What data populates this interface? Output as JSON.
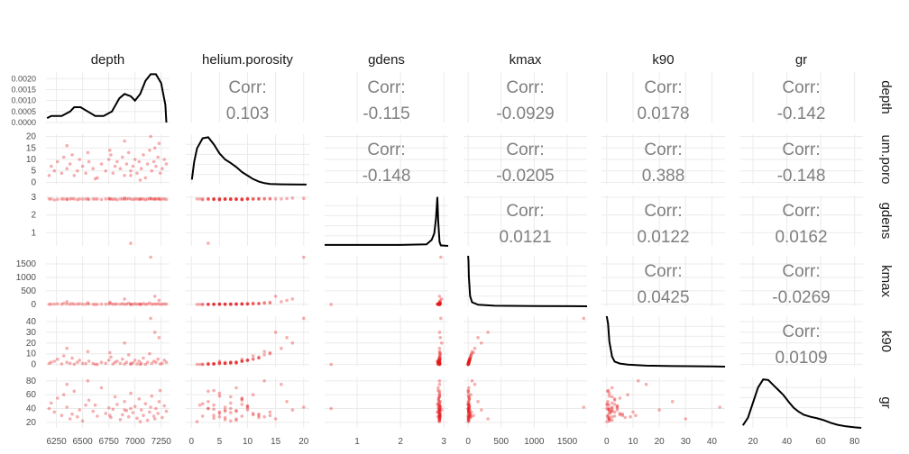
{
  "chart_data": {
    "type": "scatter",
    "title": "",
    "variables": [
      "depth",
      "helium.porosity",
      "gdens",
      "kmax",
      "k90",
      "gr"
    ],
    "row_strip_labels": [
      "depth",
      "um.poro",
      "gdens",
      "kmax",
      "k90",
      "gr"
    ],
    "corr_label": "Corr:",
    "correlations": [
      {
        "row": 0,
        "col": 1,
        "value": "0.103"
      },
      {
        "row": 0,
        "col": 2,
        "value": "-0.115"
      },
      {
        "row": 0,
        "col": 3,
        "value": "-0.0929"
      },
      {
        "row": 0,
        "col": 4,
        "value": "0.0178"
      },
      {
        "row": 0,
        "col": 5,
        "value": "-0.142"
      },
      {
        "row": 1,
        "col": 2,
        "value": "-0.148"
      },
      {
        "row": 1,
        "col": 3,
        "value": "-0.0205"
      },
      {
        "row": 1,
        "col": 4,
        "value": "0.388"
      },
      {
        "row": 1,
        "col": 5,
        "value": "-0.148"
      },
      {
        "row": 2,
        "col": 3,
        "value": "0.0121"
      },
      {
        "row": 2,
        "col": 4,
        "value": "0.0122"
      },
      {
        "row": 2,
        "col": 5,
        "value": "0.0162"
      },
      {
        "row": 3,
        "col": 4,
        "value": "0.0425"
      },
      {
        "row": 3,
        "col": 5,
        "value": "-0.0269"
      },
      {
        "row": 4,
        "col": 5,
        "value": "0.0109"
      }
    ],
    "x_axis_ticks": [
      {
        "col": 0,
        "ticks": [
          "6250",
          "6500",
          "6750",
          "7000",
          "7250"
        ]
      },
      {
        "col": 1,
        "ticks": [
          "0",
          "5",
          "10",
          "15",
          "20"
        ]
      },
      {
        "col": 2,
        "ticks": [
          "1",
          "2",
          "3"
        ]
      },
      {
        "col": 3,
        "ticks": [
          "0",
          "500",
          "1000",
          "1500"
        ]
      },
      {
        "col": 4,
        "ticks": [
          "0",
          "10",
          "20",
          "30",
          "40"
        ]
      },
      {
        "col": 5,
        "ticks": [
          "20",
          "40",
          "60",
          "80"
        ]
      }
    ],
    "y_axis_ticks": [
      {
        "row": 0,
        "ticks": [
          "0.0000",
          "0.0005",
          "0.0010",
          "0.0015",
          "0.0020"
        ]
      },
      {
        "row": 1,
        "ticks": [
          "0",
          "5",
          "10",
          "15",
          "20"
        ]
      },
      {
        "row": 2,
        "ticks": [
          "1",
          "2",
          "3"
        ]
      },
      {
        "row": 3,
        "ticks": [
          "0",
          "500",
          "1000",
          "1500"
        ]
      },
      {
        "row": 4,
        "ticks": [
          "0",
          "10",
          "20",
          "30",
          "40"
        ]
      },
      {
        "row": 5,
        "ticks": [
          "20",
          "40",
          "60",
          "80"
        ]
      }
    ],
    "ranges": {
      "depth": [
        6150,
        7330
      ],
      "helium.porosity": [
        -1,
        21
      ],
      "gdens": [
        0.25,
        3.1
      ],
      "kmax": [
        -70,
        1800
      ],
      "k90": [
        -2,
        45
      ],
      "gr": [
        12,
        85
      ]
    },
    "depth_density_ylim": [
      0,
      0.0023
    ],
    "diagonal_density_curves": [
      {
        "variable": "depth",
        "x": [
          6160,
          6200,
          6300,
          6380,
          6420,
          6480,
          6550,
          6620,
          6700,
          6780,
          6850,
          6900,
          6960,
          7000,
          7050,
          7100,
          7150,
          7200,
          7250,
          7290,
          7300
        ],
        "y": [
          0.0002,
          0.0003,
          0.0003,
          0.0005,
          0.0007,
          0.0007,
          0.0005,
          0.0003,
          0.0003,
          0.0005,
          0.0011,
          0.0013,
          0.0012,
          0.001,
          0.0013,
          0.0019,
          0.0022,
          0.0022,
          0.0018,
          0.0008,
          0.0
        ]
      },
      {
        "variable": "helium.porosity",
        "x": [
          0.1,
          0.5,
          1,
          2,
          3,
          4,
          5,
          6,
          7,
          8,
          9,
          10,
          11,
          12,
          13,
          14,
          16,
          18,
          20.5
        ],
        "y": [
          0.1,
          0.45,
          0.72,
          0.92,
          0.94,
          0.8,
          0.62,
          0.5,
          0.43,
          0.35,
          0.25,
          0.18,
          0.11,
          0.06,
          0.03,
          0.015,
          0.008,
          0.003,
          0.001
        ]
      },
      {
        "variable": "gdens",
        "x": [
          0.25,
          1,
          2,
          2.6,
          2.72,
          2.78,
          2.82,
          2.85,
          2.87,
          2.9,
          2.93,
          3.1
        ],
        "y": [
          0.02,
          0.02,
          0.02,
          0.03,
          0.12,
          0.25,
          0.55,
          0.97,
          0.5,
          0.08,
          0.01,
          0.0
        ]
      },
      {
        "variable": "kmax",
        "x": [
          0,
          5,
          10,
          30,
          60,
          150,
          400,
          1000,
          1800
        ],
        "y": [
          1.0,
          0.9,
          0.6,
          0.2,
          0.08,
          0.03,
          0.01,
          0.005,
          0.0
        ]
      },
      {
        "variable": "k90",
        "x": [
          0,
          0.5,
          1,
          2,
          3,
          5,
          8,
          15,
          25,
          40,
          45
        ],
        "y": [
          1.0,
          0.85,
          0.5,
          0.2,
          0.1,
          0.06,
          0.04,
          0.02,
          0.01,
          0.005,
          0.0
        ]
      },
      {
        "variable": "gr",
        "x": [
          14,
          17,
          20,
          23,
          26,
          29,
          32,
          35,
          38,
          41,
          44,
          47,
          50,
          54,
          58,
          62,
          66,
          70,
          75,
          80,
          84
        ],
        "y": [
          0.05,
          0.2,
          0.5,
          0.8,
          0.96,
          0.95,
          0.85,
          0.75,
          0.65,
          0.52,
          0.4,
          0.32,
          0.26,
          0.22,
          0.19,
          0.15,
          0.1,
          0.06,
          0.03,
          0.01,
          0.0
        ]
      }
    ],
    "scatter_points": [
      {
        "depth": 6180,
        "helium.porosity": 3,
        "gdens": 2.9,
        "kmax": 5,
        "k90": 1,
        "gr": 40
      },
      {
        "depth": 6200,
        "helium.porosity": 7,
        "gdens": 2.9,
        "kmax": 8,
        "k90": 2,
        "gr": 48
      },
      {
        "depth": 6230,
        "helium.porosity": 5,
        "gdens": 2.85,
        "kmax": 10,
        "k90": 3,
        "gr": 35
      },
      {
        "depth": 6260,
        "helium.porosity": 9,
        "gdens": 2.88,
        "kmax": 20,
        "k90": 5,
        "gr": 55
      },
      {
        "depth": 6300,
        "helium.porosity": 4,
        "gdens": 2.9,
        "kmax": 3,
        "k90": 0.5,
        "gr": 30
      },
      {
        "depth": 6320,
        "helium.porosity": 11,
        "gdens": 2.9,
        "kmax": 40,
        "k90": 8,
        "gr": 60
      },
      {
        "depth": 6350,
        "helium.porosity": 6,
        "gdens": 2.87,
        "kmax": 12,
        "k90": 2,
        "gr": 42
      },
      {
        "depth": 6380,
        "helium.porosity": 8,
        "gdens": 2.9,
        "kmax": 6,
        "k90": 1,
        "gr": 25
      },
      {
        "depth": 6400,
        "helium.porosity": 12,
        "gdens": 2.92,
        "kmax": 30,
        "k90": 6,
        "gr": 32
      },
      {
        "depth": 6420,
        "helium.porosity": 3,
        "gdens": 2.9,
        "kmax": 2,
        "k90": 0.3,
        "gr": 65
      },
      {
        "depth": 6450,
        "helium.porosity": 5,
        "gdens": 2.86,
        "kmax": 9,
        "k90": 2,
        "gr": 28
      },
      {
        "depth": 6470,
        "helium.porosity": 10,
        "gdens": 2.9,
        "kmax": 25,
        "k90": 4,
        "gr": 38
      },
      {
        "depth": 6500,
        "helium.porosity": 7,
        "gdens": 2.89,
        "kmax": 7,
        "k90": 1,
        "gr": 22
      },
      {
        "depth": 6530,
        "helium.porosity": 4,
        "gdens": 2.9,
        "kmax": 4,
        "k90": 0.8,
        "gr": 45
      },
      {
        "depth": 6560,
        "helium.porosity": 9,
        "gdens": 2.88,
        "kmax": 15,
        "k90": 3,
        "gr": 52
      },
      {
        "depth": 6600,
        "helium.porosity": 6,
        "gdens": 2.9,
        "kmax": 5,
        "k90": 1,
        "gr": 36
      },
      {
        "depth": 6640,
        "helium.porosity": 2,
        "gdens": 2.9,
        "kmax": 1,
        "k90": 0.2,
        "gr": 29
      },
      {
        "depth": 6680,
        "helium.porosity": 8,
        "gdens": 2.87,
        "kmax": 11,
        "k90": 2,
        "gr": 70
      },
      {
        "depth": 6720,
        "helium.porosity": 5,
        "gdens": 2.9,
        "kmax": 6,
        "k90": 1,
        "gr": 33
      },
      {
        "depth": 6750,
        "helium.porosity": 10,
        "gdens": 2.91,
        "kmax": 18,
        "k90": 4,
        "gr": 41
      },
      {
        "depth": 6770,
        "helium.porosity": 12,
        "gdens": 2.9,
        "kmax": 35,
        "k90": 7,
        "gr": 27
      },
      {
        "depth": 6790,
        "helium.porosity": 4,
        "gdens": 2.88,
        "kmax": 3,
        "k90": 0.5,
        "gr": 39
      },
      {
        "depth": 6810,
        "helium.porosity": 7,
        "gdens": 2.9,
        "kmax": 9,
        "k90": 2,
        "gr": 57
      },
      {
        "depth": 6830,
        "helium.porosity": 9,
        "gdens": 2.86,
        "kmax": 14,
        "k90": 3,
        "gr": 46
      },
      {
        "depth": 6860,
        "helium.porosity": 6,
        "gdens": 2.9,
        "kmax": 5,
        "k90": 1,
        "gr": 24
      },
      {
        "depth": 6880,
        "helium.porosity": 11,
        "gdens": 2.9,
        "kmax": 28,
        "k90": 5,
        "gr": 31
      },
      {
        "depth": 6900,
        "helium.porosity": 3,
        "gdens": 2.89,
        "kmax": 2,
        "k90": 0.4,
        "gr": 50
      },
      {
        "depth": 6920,
        "helium.porosity": 8,
        "gdens": 2.9,
        "kmax": 10,
        "k90": 2,
        "gr": 37
      },
      {
        "depth": 6940,
        "helium.porosity": 13,
        "gdens": 2.92,
        "kmax": 45,
        "k90": 9,
        "gr": 28
      },
      {
        "depth": 6960,
        "helium.porosity": 5,
        "gdens": 2.9,
        "kmax": 4,
        "k90": 1,
        "gr": 62
      },
      {
        "depth": 6980,
        "helium.porosity": 7,
        "gdens": 2.87,
        "kmax": 8,
        "k90": 1.5,
        "gr": 34
      },
      {
        "depth": 7000,
        "helium.porosity": 10,
        "gdens": 2.9,
        "kmax": 20,
        "k90": 4,
        "gr": 43
      },
      {
        "depth": 7020,
        "helium.porosity": 4,
        "gdens": 2.9,
        "kmax": 3,
        "k90": 0.5,
        "gr": 26
      },
      {
        "depth": 7040,
        "helium.porosity": 9,
        "gdens": 2.88,
        "kmax": 16,
        "k90": 3,
        "gr": 54
      },
      {
        "depth": 7060,
        "helium.porosity": 6,
        "gdens": 2.9,
        "kmax": 7,
        "k90": 1,
        "gr": 38
      },
      {
        "depth": 7080,
        "helium.porosity": 12,
        "gdens": 2.9,
        "kmax": 30,
        "k90": 6,
        "gr": 30
      },
      {
        "depth": 7100,
        "helium.porosity": 2,
        "gdens": 2.86,
        "kmax": 1,
        "k90": 0.2,
        "gr": 47
      },
      {
        "depth": 7120,
        "helium.porosity": 8,
        "gdens": 2.9,
        "kmax": 12,
        "k90": 2,
        "gr": 23
      },
      {
        "depth": 7140,
        "helium.porosity": 14,
        "gdens": 2.91,
        "kmax": 50,
        "k90": 10,
        "gr": 35
      },
      {
        "depth": 7160,
        "helium.porosity": 5,
        "gdens": 2.9,
        "kmax": 5,
        "k90": 1,
        "gr": 58
      },
      {
        "depth": 7180,
        "helium.porosity": 9,
        "gdens": 2.89,
        "kmax": 15,
        "k90": 3,
        "gr": 29
      },
      {
        "depth": 7200,
        "helium.porosity": 7,
        "gdens": 2.9,
        "kmax": 9,
        "k90": 2,
        "gr": 40
      },
      {
        "depth": 7220,
        "helium.porosity": 11,
        "gdens": 2.9,
        "kmax": 25,
        "k90": 5,
        "gr": 33
      },
      {
        "depth": 7240,
        "helium.porosity": 4,
        "gdens": 2.87,
        "kmax": 3,
        "k90": 0.6,
        "gr": 66
      },
      {
        "depth": 7260,
        "helium.porosity": 6,
        "gdens": 2.9,
        "kmax": 6,
        "k90": 1,
        "gr": 27
      },
      {
        "depth": 7280,
        "helium.porosity": 10,
        "gdens": 2.9,
        "kmax": 18,
        "k90": 4,
        "gr": 44
      },
      {
        "depth": 7300,
        "helium.porosity": 8,
        "gdens": 2.88,
        "kmax": 11,
        "k90": 2,
        "gr": 36
      },
      {
        "depth": 6960,
        "helium.porosity": 3,
        "gdens": 0.4,
        "kmax": 1,
        "k90": 0.1,
        "gr": 40
      },
      {
        "depth": 6900,
        "helium.porosity": 18,
        "gdens": 2.95,
        "kmax": 200,
        "k90": 20,
        "gr": 38
      },
      {
        "depth": 7150,
        "helium.porosity": 20,
        "gdens": 2.93,
        "kmax": 1750,
        "k90": 43,
        "gr": 42
      },
      {
        "depth": 7190,
        "helium.porosity": 15,
        "gdens": 2.9,
        "kmax": 300,
        "k90": 30,
        "gr": 25
      },
      {
        "depth": 6350,
        "helium.porosity": 16,
        "gdens": 2.9,
        "kmax": 100,
        "k90": 15,
        "gr": 75
      },
      {
        "depth": 6550,
        "helium.porosity": 13,
        "gdens": 2.9,
        "kmax": 60,
        "k90": 12,
        "gr": 80
      },
      {
        "depth": 7050,
        "helium.porosity": 1,
        "gdens": 2.9,
        "kmax": 0.5,
        "k90": 0.1,
        "gr": 21
      },
      {
        "depth": 6760,
        "helium.porosity": 14,
        "gdens": 2.91,
        "kmax": 80,
        "k90": 11,
        "gr": 30
      },
      {
        "depth": 6620,
        "helium.porosity": 1.5,
        "gdens": 2.9,
        "kmax": 0.8,
        "k90": 0.1,
        "gr": 45
      },
      {
        "depth": 7230,
        "helium.porosity": 17,
        "gdens": 2.92,
        "kmax": 150,
        "k90": 25,
        "gr": 50
      }
    ],
    "colors": {
      "points": "#E41A1C",
      "curve": "#000000",
      "corr_text": "#7F7F7F",
      "panel_bg": "#FFFFFF",
      "grid": "#EBEBEB",
      "strip_text": "#1A1A1A",
      "tick_text": "#4D4D4D"
    }
  }
}
